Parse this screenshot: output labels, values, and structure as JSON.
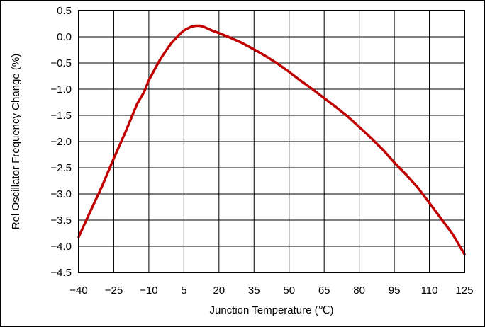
{
  "chart_data": {
    "type": "line",
    "title": "",
    "xlabel": "Junction Temperature (℃)",
    "ylabel": "Rel Oscillator Frequency Change (%)",
    "xlim": [
      -40,
      125
    ],
    "ylim": [
      -4.5,
      0.5
    ],
    "xticks": [
      -40,
      -25,
      -10,
      5,
      20,
      35,
      50,
      65,
      80,
      95,
      110,
      125
    ],
    "xtick_labels": [
      "−40",
      "−25",
      "−10",
      "5",
      "20",
      "35",
      "50",
      "65",
      "80",
      "95",
      "110",
      "125"
    ],
    "yticks": [
      0.5,
      0.0,
      -0.5,
      -1.0,
      -1.5,
      -2.0,
      -2.5,
      -3.0,
      -3.5,
      -4.0,
      -4.5
    ],
    "ytick_labels": [
      "0.5",
      "0.0",
      "−0.5",
      "−1.0",
      "−1.5",
      "−2.0",
      "−2.5",
      "−3.0",
      "−3.5",
      "−4.0",
      "−4.5"
    ],
    "grid": true,
    "series": [
      {
        "color": "#c00000",
        "x": [
          -40,
          -35,
          -30,
          -25,
          -20,
          -15,
          -12,
          -10,
          -7,
          -5,
          -2,
          0,
          3,
          5,
          8,
          10,
          12,
          14,
          17,
          20,
          25,
          30,
          35,
          40,
          45,
          50,
          55,
          60,
          65,
          70,
          75,
          80,
          85,
          90,
          95,
          100,
          105,
          110,
          115,
          120,
          125
        ],
        "y": [
          -3.82,
          -3.33,
          -2.85,
          -2.32,
          -1.82,
          -1.28,
          -1.05,
          -0.83,
          -0.58,
          -0.42,
          -0.22,
          -0.1,
          0.04,
          0.12,
          0.19,
          0.21,
          0.21,
          0.18,
          0.12,
          0.07,
          -0.02,
          -0.12,
          -0.24,
          -0.37,
          -0.51,
          -0.67,
          -0.84,
          -1.0,
          -1.17,
          -1.34,
          -1.52,
          -1.72,
          -1.93,
          -2.15,
          -2.4,
          -2.63,
          -2.88,
          -3.17,
          -3.47,
          -3.77,
          -4.15
        ]
      }
    ]
  }
}
